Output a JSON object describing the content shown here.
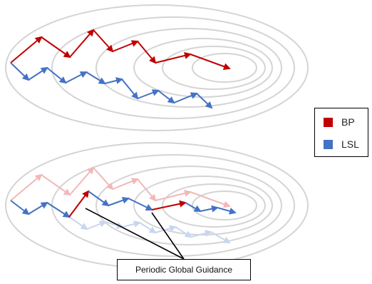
{
  "legend": {
    "items": [
      {
        "label": "BP",
        "color": "#c00000"
      },
      {
        "label": "LSL",
        "color": "#4472c4"
      }
    ]
  },
  "callout": {
    "label": "Periodic Global Guidance"
  },
  "colors": {
    "bp": "#c00000",
    "lsl": "#4472c4",
    "bp_faded": "#f2b8b8",
    "lsl_faded": "#c9d6ee",
    "contour": "#d4d4d4"
  }
}
